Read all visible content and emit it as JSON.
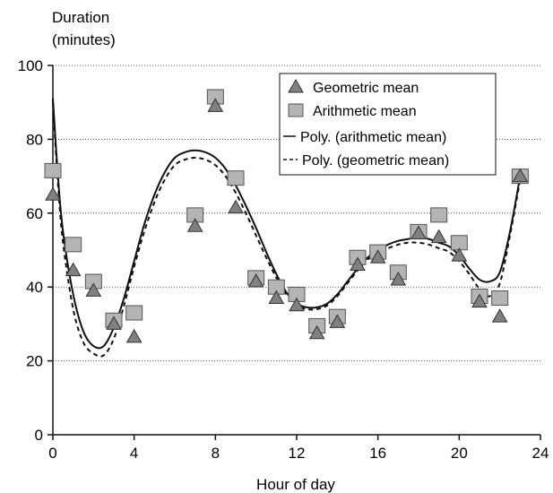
{
  "chart_data": {
    "type": "scatter",
    "ylabel_lines": [
      "Duration",
      "(minutes)"
    ],
    "xlabel": "Hour of day",
    "xlim": [
      0,
      24
    ],
    "ylim": [
      0,
      100
    ],
    "xticks": [
      0,
      4,
      8,
      12,
      16,
      20,
      24
    ],
    "yticks": [
      0,
      20,
      40,
      60,
      80,
      100
    ],
    "grid": "horizontal dotted",
    "legend_position": "top-right",
    "series": [
      {
        "name": "Geometric mean",
        "kind": "marker",
        "marker": "triangle",
        "color": "#808080",
        "points": [
          [
            0,
            65
          ],
          [
            1,
            44.5
          ],
          [
            2,
            39
          ],
          [
            3,
            30
          ],
          [
            4,
            26.5
          ],
          [
            7,
            56.5
          ],
          [
            8,
            89
          ],
          [
            9,
            61.5
          ],
          [
            10,
            41.5
          ],
          [
            11,
            37
          ],
          [
            12,
            35
          ],
          [
            13,
            27.5
          ],
          [
            14,
            30.5
          ],
          [
            15,
            46
          ],
          [
            16,
            48
          ],
          [
            17,
            42
          ],
          [
            18,
            54.5
          ],
          [
            19,
            53.5
          ],
          [
            20,
            48.5
          ],
          [
            21,
            36
          ],
          [
            22,
            32
          ],
          [
            23,
            70
          ]
        ]
      },
      {
        "name": "Arithmetic mean",
        "kind": "marker",
        "marker": "square",
        "color": "#b4b4b4",
        "points": [
          [
            0,
            71.5
          ],
          [
            1,
            51.5
          ],
          [
            2,
            41.5
          ],
          [
            3,
            31
          ],
          [
            4,
            33
          ],
          [
            7,
            59.5
          ],
          [
            8,
            91.5
          ],
          [
            9,
            69.5
          ],
          [
            10,
            42.5
          ],
          [
            11,
            40
          ],
          [
            12,
            38
          ],
          [
            13,
            29.5
          ],
          [
            14,
            32
          ],
          [
            15,
            48
          ],
          [
            16,
            49.5
          ],
          [
            17,
            44
          ],
          [
            18,
            55
          ],
          [
            19,
            59.5
          ],
          [
            20,
            52
          ],
          [
            21,
            37.5
          ],
          [
            22,
            37
          ],
          [
            23,
            70
          ]
        ]
      },
      {
        "name": "Poly. (arithmetic mean)",
        "kind": "line",
        "dash": "solid",
        "color": "#111111",
        "points": [
          [
            0,
            91
          ],
          [
            0.25,
            70
          ],
          [
            0.5,
            55
          ],
          [
            1,
            38
          ],
          [
            1.5,
            28
          ],
          [
            2,
            24
          ],
          [
            2.5,
            24
          ],
          [
            3,
            29
          ],
          [
            3.5,
            37
          ],
          [
            4,
            47
          ],
          [
            4.5,
            57
          ],
          [
            5,
            65
          ],
          [
            5.5,
            71
          ],
          [
            6,
            75
          ],
          [
            6.5,
            76.5
          ],
          [
            7,
            77
          ],
          [
            7.5,
            76.5
          ],
          [
            8,
            75
          ],
          [
            8.5,
            72
          ],
          [
            9,
            67.5
          ],
          [
            9.5,
            62
          ],
          [
            10,
            56
          ],
          [
            10.5,
            49.5
          ],
          [
            11,
            43.5
          ],
          [
            11.5,
            38.5
          ],
          [
            12,
            35.5
          ],
          [
            12.5,
            34.5
          ],
          [
            13,
            34.5
          ],
          [
            13.5,
            35.5
          ],
          [
            14,
            38
          ],
          [
            14.5,
            41.5
          ],
          [
            15,
            45
          ],
          [
            15.5,
            48
          ],
          [
            16,
            50
          ],
          [
            16.5,
            51.5
          ],
          [
            17,
            52.5
          ],
          [
            17.5,
            53
          ],
          [
            18,
            53.5
          ],
          [
            18.5,
            53
          ],
          [
            19,
            52
          ],
          [
            19.5,
            51
          ],
          [
            20,
            48.5
          ],
          [
            20.5,
            45
          ],
          [
            21,
            42
          ],
          [
            21.5,
            41.5
          ],
          [
            22,
            44
          ],
          [
            22.5,
            55
          ],
          [
            23,
            70
          ]
        ]
      },
      {
        "name": "Poly. (geometric mean)",
        "kind": "line",
        "dash": "dashed",
        "color": "#111111",
        "points": [
          [
            0,
            90
          ],
          [
            0.25,
            68
          ],
          [
            0.5,
            52
          ],
          [
            1,
            34
          ],
          [
            1.5,
            25
          ],
          [
            2,
            22
          ],
          [
            2.5,
            21.5
          ],
          [
            3,
            26
          ],
          [
            3.5,
            35
          ],
          [
            4,
            45.5
          ],
          [
            4.5,
            55
          ],
          [
            5,
            63
          ],
          [
            5.5,
            69
          ],
          [
            6,
            73
          ],
          [
            6.5,
            74.5
          ],
          [
            7,
            75
          ],
          [
            7.5,
            74.5
          ],
          [
            8,
            73
          ],
          [
            8.5,
            70
          ],
          [
            9,
            65.5
          ],
          [
            9.5,
            60
          ],
          [
            10,
            54
          ],
          [
            10.5,
            48
          ],
          [
            11,
            42.5
          ],
          [
            11.5,
            38
          ],
          [
            12,
            35
          ],
          [
            12.5,
            34
          ],
          [
            13,
            34
          ],
          [
            13.5,
            35
          ],
          [
            14,
            37.5
          ],
          [
            14.5,
            41
          ],
          [
            15,
            44.5
          ],
          [
            15.5,
            47.5
          ],
          [
            16,
            49.5
          ],
          [
            16.5,
            50.5
          ],
          [
            17,
            51.5
          ],
          [
            17.5,
            52
          ],
          [
            18,
            52
          ],
          [
            18.5,
            51.5
          ],
          [
            19,
            50.5
          ],
          [
            19.5,
            49.5
          ],
          [
            20,
            47
          ],
          [
            20.5,
            43.5
          ],
          [
            21,
            39.5
          ],
          [
            21.5,
            37.5
          ],
          [
            22,
            41
          ],
          [
            22.5,
            54
          ],
          [
            23,
            69
          ]
        ]
      }
    ]
  }
}
